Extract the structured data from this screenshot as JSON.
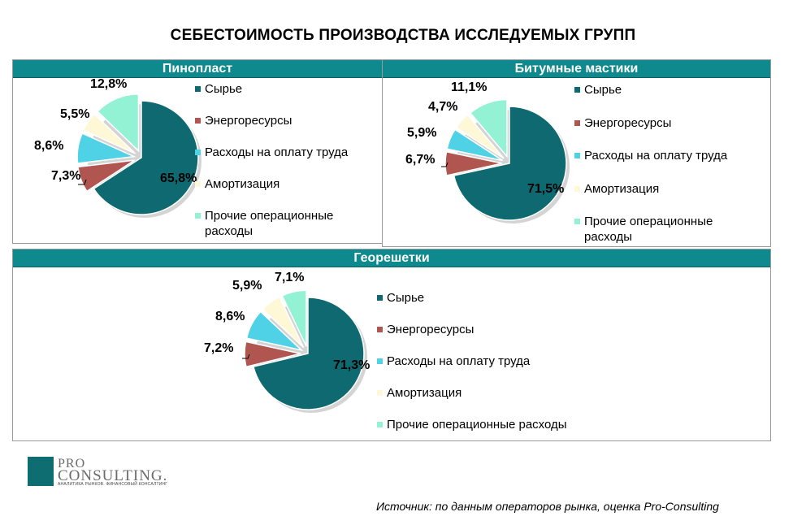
{
  "title": "СЕБЕСТОИМОСТЬ ПРОИЗВОДСТВА ИССЛЕДУЕМЫХ ГРУПП",
  "colors": {
    "header": "#0e8a8e",
    "slices": [
      "#0e6a70",
      "#b0554f",
      "#4fd2e6",
      "#fff8d6",
      "#93f2d4"
    ]
  },
  "chart_data": [
    {
      "type": "pie",
      "title": "Пинопласт",
      "categories": [
        "Сырье",
        "Энергоресурсы",
        "Расходы на оплату труда",
        "Амортизация",
        "Прочие операционные расходы"
      ],
      "values": [
        65.8,
        7.3,
        8.6,
        5.5,
        12.8
      ],
      "labels": [
        "65,8%",
        "7,3%",
        "8,6%",
        "5,5%",
        "12,8%"
      ],
      "legend_lines": [
        [
          "Сырье"
        ],
        [
          "Энергоресурсы"
        ],
        [
          "Расходы на оплату труда"
        ],
        [
          "Амортизация"
        ],
        [
          "Прочие операционные",
          "расходы"
        ]
      ],
      "exploded": 0
    },
    {
      "type": "pie",
      "title": "Битумные мастики",
      "categories": [
        "Сырье",
        "Энергоресурсы",
        "Расходы на оплату труда",
        "Амортизация",
        "Прочие операционные расходы"
      ],
      "values": [
        71.5,
        6.7,
        5.9,
        4.7,
        11.1
      ],
      "labels": [
        "71,5%",
        "6,7%",
        "5,9%",
        "4,7%",
        "11,1%"
      ],
      "legend_lines": [
        [
          "Сырье"
        ],
        [
          "Энергоресурсы"
        ],
        [
          "Расходы на оплату труда"
        ],
        [
          "Амортизация"
        ],
        [
          "Прочие операционные",
          "расходы"
        ]
      ],
      "exploded": 0
    },
    {
      "type": "pie",
      "title": "Георешетки",
      "categories": [
        "Сырье",
        "Энергоресурсы",
        "Расходы на оплату труда",
        "Амортизация",
        "Прочие операционные расходы"
      ],
      "values": [
        71.3,
        7.2,
        8.6,
        5.9,
        7.1
      ],
      "labels": [
        "71,3%",
        "7,2%",
        "8,6%",
        "5,9%",
        "7,1%"
      ],
      "legend_lines": [
        [
          "Сырье"
        ],
        [
          "Энергоресурсы"
        ],
        [
          "Расходы на оплату труда"
        ],
        [
          "Амортизация"
        ],
        [
          "Прочие операционные расходы"
        ]
      ],
      "exploded": 0
    }
  ],
  "logo": {
    "line1": "PRO",
    "line2": "CONSULTING.",
    "tagline": "АНАЛИТИКА РЫНКОВ. ФИНАНСОВЫЙ КОНСАЛТИНГ"
  },
  "source": "Источник: по данным операторов рынка, оценка Pro-Consulting"
}
